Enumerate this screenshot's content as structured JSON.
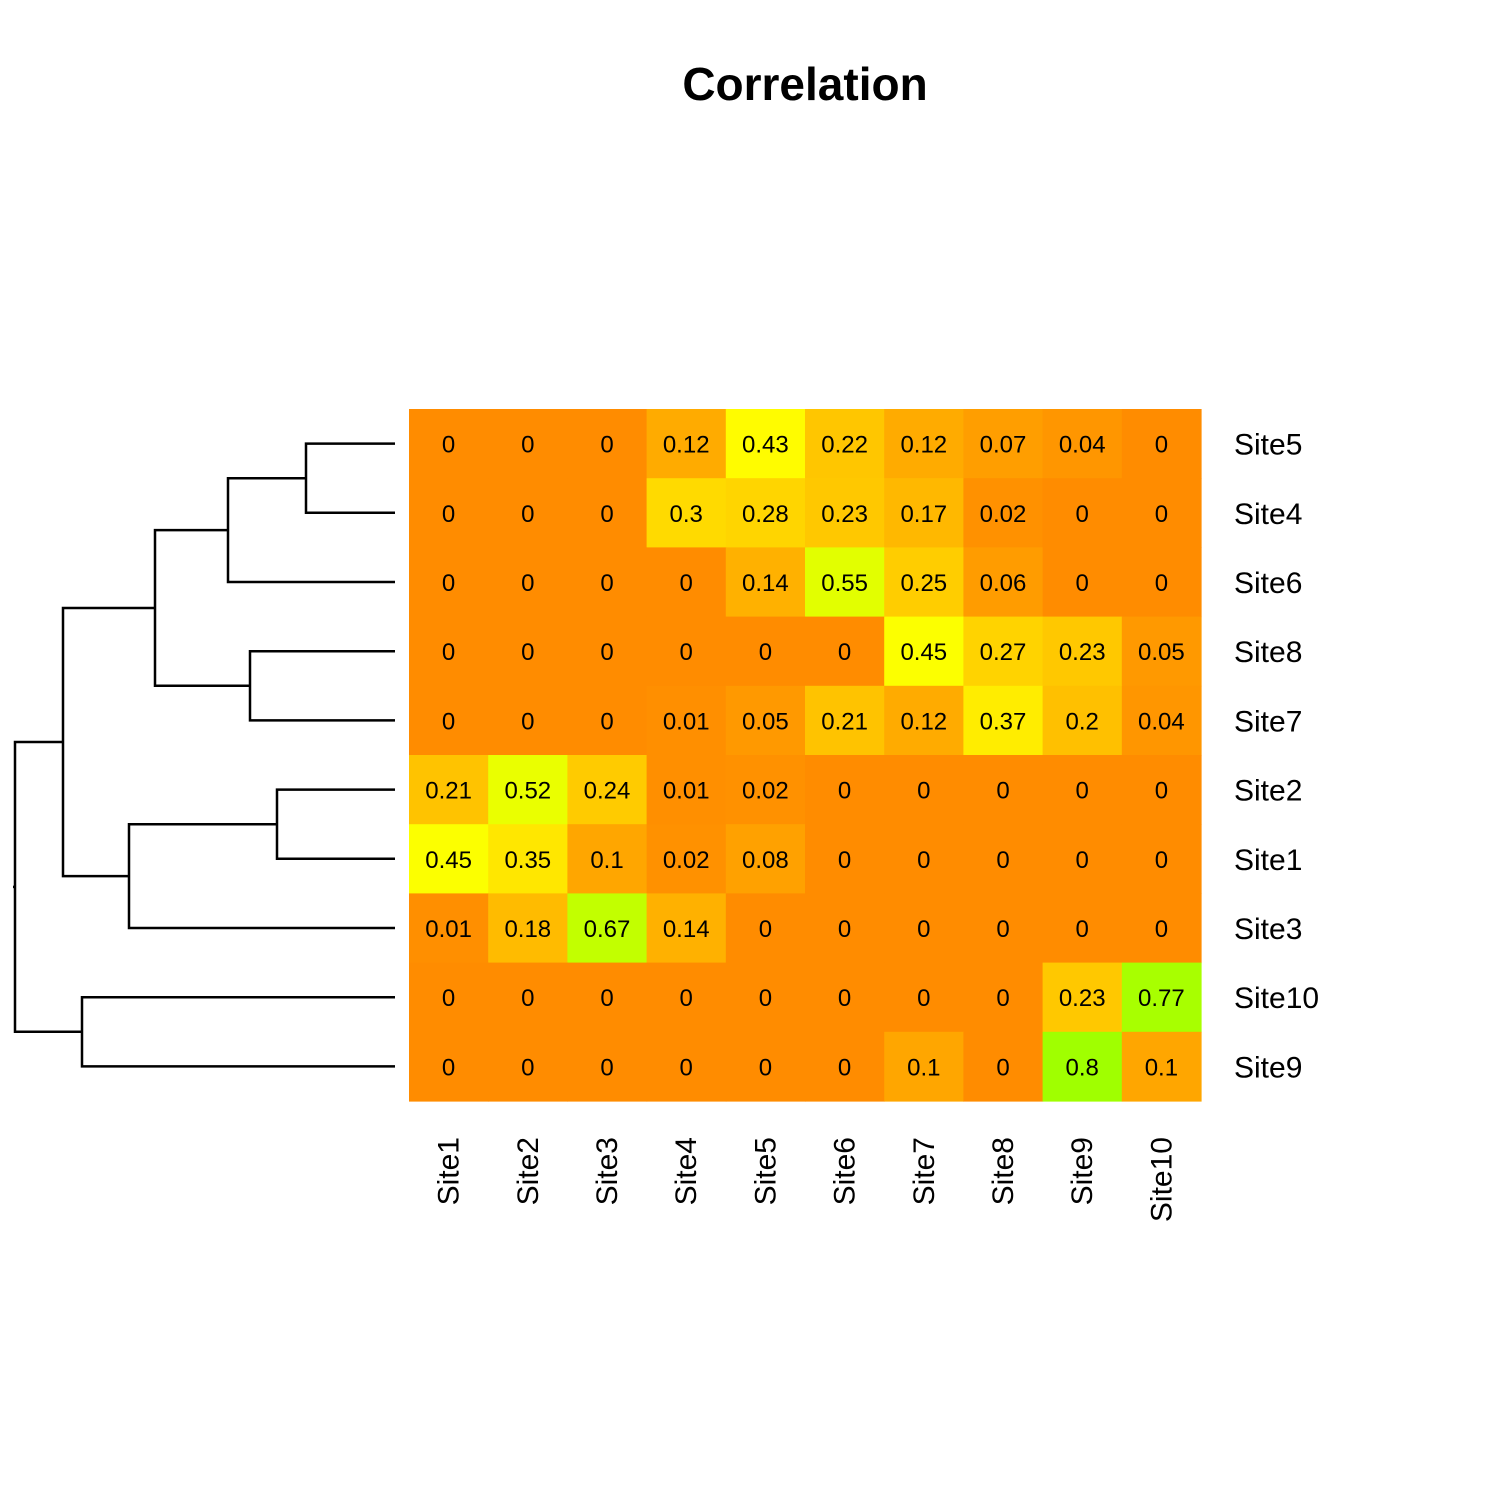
{
  "chart_data": {
    "type": "heatmap",
    "title": "Correlation",
    "rows": [
      "Site5",
      "Site4",
      "Site6",
      "Site8",
      "Site7",
      "Site2",
      "Site1",
      "Site3",
      "Site10",
      "Site9"
    ],
    "columns": [
      "Site1",
      "Site2",
      "Site3",
      "Site4",
      "Site5",
      "Site6",
      "Site7",
      "Site8",
      "Site9",
      "Site10"
    ],
    "values": [
      [
        0,
        0,
        0,
        0.12,
        0.43,
        0.22,
        0.12,
        0.07,
        0.04,
        0
      ],
      [
        0,
        0,
        0,
        0.3,
        0.28,
        0.23,
        0.17,
        0.02,
        0,
        0
      ],
      [
        0,
        0,
        0,
        0,
        0.14,
        0.55,
        0.25,
        0.06,
        0,
        0
      ],
      [
        0,
        0,
        0,
        0,
        0,
        0,
        0.45,
        0.27,
        0.23,
        0.05
      ],
      [
        0,
        0,
        0,
        0.01,
        0.05,
        0.21,
        0.12,
        0.37,
        0.2,
        0.04
      ],
      [
        0.21,
        0.52,
        0.24,
        0.01,
        0.02,
        0,
        0,
        0,
        0,
        0
      ],
      [
        0.45,
        0.35,
        0.1,
        0.02,
        0.08,
        0,
        0,
        0,
        0,
        0
      ],
      [
        0.01,
        0.18,
        0.67,
        0.14,
        0,
        0,
        0,
        0,
        0,
        0
      ],
      [
        0,
        0,
        0,
        0,
        0,
        0,
        0,
        0,
        0.23,
        0.77
      ],
      [
        0,
        0,
        0,
        0,
        0,
        0,
        0.1,
        0,
        0.8,
        0.1
      ]
    ],
    "color_scale": [
      "#ff8c00",
      "#ffff00",
      "#a0ff00"
    ],
    "row_dendrogram": true,
    "legend": "none"
  }
}
